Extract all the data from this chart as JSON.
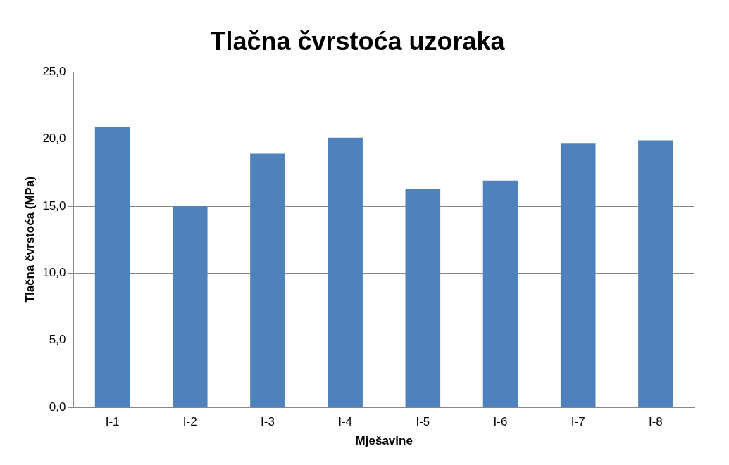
{
  "chart_data": {
    "type": "bar",
    "title": "Tlačna čvrstoća uzoraka",
    "xlabel": "Mješavine",
    "ylabel": "Tlačna čvrstoća (MPa)",
    "categories": [
      "I-1",
      "I-2",
      "I-3",
      "I-4",
      "I-5",
      "I-6",
      "I-7",
      "I-8"
    ],
    "values": [
      20.9,
      15.0,
      18.9,
      20.1,
      16.3,
      16.9,
      19.7,
      19.9
    ],
    "color": "#4f81bd",
    "ylim": [
      0,
      25
    ],
    "yticks": [
      {
        "value": 0,
        "label": "0,0"
      },
      {
        "value": 5,
        "label": "5,0"
      },
      {
        "value": 10,
        "label": "10,0"
      },
      {
        "value": 15,
        "label": "15,0"
      },
      {
        "value": 20,
        "label": "20,0"
      },
      {
        "value": 25,
        "label": "25,0"
      }
    ],
    "grid": "y",
    "legend": false
  }
}
